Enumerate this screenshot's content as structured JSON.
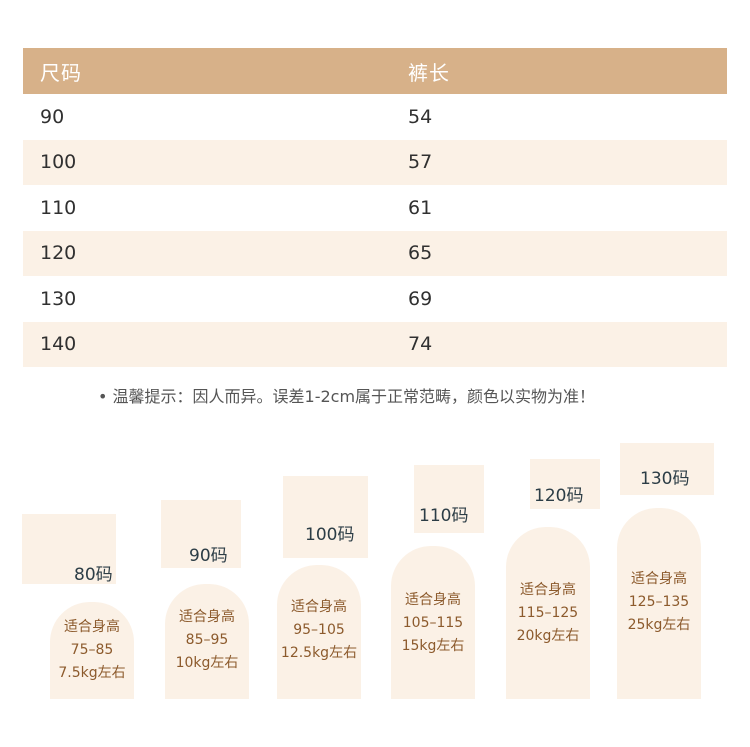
{
  "table": {
    "headers": [
      "尺码",
      "裤长"
    ],
    "rows": [
      [
        "90",
        "54"
      ],
      [
        "100",
        "57"
      ],
      [
        "110",
        "61"
      ],
      [
        "120",
        "65"
      ],
      [
        "130",
        "69"
      ],
      [
        "140",
        "74"
      ]
    ]
  },
  "note": "• 温馨提示：因人而异。误差1-2cm属于正常范畴，颜色以实物为准！",
  "cards": [
    {
      "size": "80码",
      "fit": "适合身高",
      "height": "75–85",
      "weight": "7.5kg左右"
    },
    {
      "size": "90码",
      "fit": "适合身高",
      "height": "85–95",
      "weight": "10kg左右"
    },
    {
      "size": "100码",
      "fit": "适合身高",
      "height": "95–105",
      "weight": "12.5kg左右"
    },
    {
      "size": "110码",
      "fit": "适合身高",
      "height": "105–115",
      "weight": "15kg左右"
    },
    {
      "size": "120码",
      "fit": "适合身高",
      "height": "115–125",
      "weight": "20kg左右"
    },
    {
      "size": "130码",
      "fit": "适合身高",
      "height": "125–135",
      "weight": "25kg左右"
    }
  ]
}
